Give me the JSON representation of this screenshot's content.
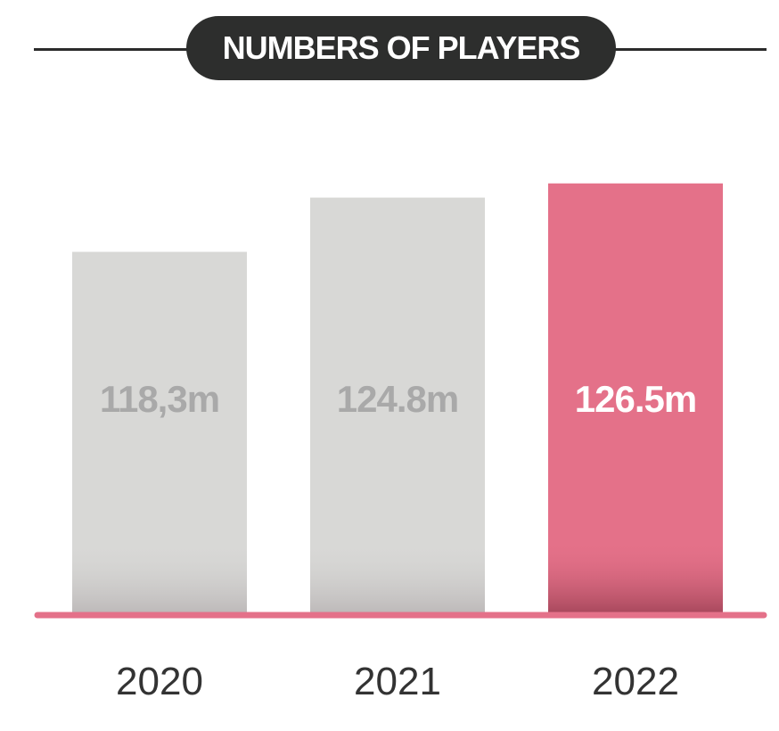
{
  "chart_data": {
    "type": "bar",
    "title": "NUMBERS OF PLAYERS",
    "categories": [
      "2020",
      "2021",
      "2022"
    ],
    "value_labels": [
      "118,3m",
      "124.8m",
      "126.5m"
    ],
    "values": [
      118.3,
      124.8,
      126.5
    ],
    "unit": "m",
    "highlight_index": 2,
    "ylim": [
      75,
      128.5
    ],
    "grid": false,
    "legend": "none",
    "colors": {
      "bar": "#d8d8d6",
      "bar_shadow": "#bdb9b9",
      "bar_label": "#a9a9a9",
      "highlight_bar": "#e47189",
      "highlight_shadow": "#a8485c",
      "highlight_label": "#ffffff",
      "baseline": "#e47189",
      "title_pill": "#2d2e2d",
      "title_text": "#ffffff"
    }
  }
}
